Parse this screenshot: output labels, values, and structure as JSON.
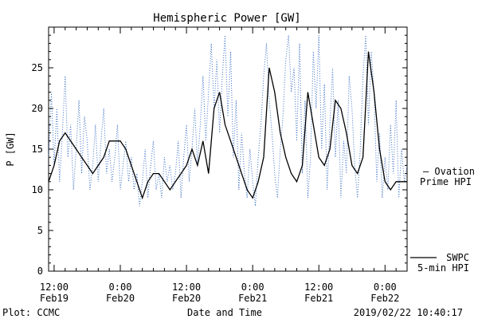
{
  "chart_data": {
    "type": "line",
    "title": "Hemispheric Power [GW]",
    "ylabel": "P [GW]",
    "xlabel": "Date and Time",
    "ylim": [
      0,
      30
    ],
    "xlim": [
      -1.0,
      64.0
    ],
    "y_ticks": [
      0,
      5,
      10,
      15,
      20,
      25
    ],
    "x_ticks": [
      {
        "x": 0,
        "time": "12:00",
        "date": "Feb19"
      },
      {
        "x": 12,
        "time": "0:00",
        "date": "Feb20"
      },
      {
        "x": 24,
        "time": "12:00",
        "date": "Feb20"
      },
      {
        "x": 36,
        "time": "0:00",
        "date": "Feb21"
      },
      {
        "x": 48,
        "time": "12:00",
        "date": "Feb21"
      },
      {
        "x": 60,
        "time": "0:00",
        "date": "Feb22"
      }
    ],
    "grid": false,
    "legend_position": "right",
    "series": [
      {
        "name": "SWPC 5-min HPI",
        "legend_lines": [
          "SWPC",
          "5-min HPI"
        ],
        "color": "#000000",
        "style": "solid",
        "x": [
          -1,
          0,
          1,
          2,
          3,
          4,
          5,
          6,
          7,
          8,
          9,
          10,
          11,
          12,
          13,
          14,
          15,
          16,
          17,
          18,
          19,
          20,
          21,
          22,
          23,
          24,
          25,
          26,
          27,
          28,
          29,
          30,
          31,
          32,
          33,
          34,
          35,
          36,
          37,
          38,
          39,
          40,
          41,
          42,
          43,
          44,
          45,
          46,
          47,
          48,
          49,
          50,
          51,
          52,
          53,
          54,
          55,
          56,
          57,
          58,
          59,
          60,
          61,
          62,
          63,
          64
        ],
        "y": [
          11,
          13,
          16,
          17,
          16,
          15,
          14,
          13,
          12,
          13,
          14,
          16,
          16,
          16,
          15,
          13,
          11,
          9,
          11,
          12,
          12,
          11,
          10,
          11,
          12,
          13,
          15,
          13,
          16,
          12,
          20,
          22,
          18,
          16,
          14,
          12,
          10,
          9,
          11,
          14,
          25,
          22,
          17,
          14,
          12,
          11,
          13,
          22,
          18,
          14,
          13,
          15,
          21,
          20,
          17,
          13,
          12,
          14,
          27,
          22,
          15,
          11,
          10,
          11,
          11,
          11
        ]
      },
      {
        "name": "Ovation Prime HPI",
        "legend_lines": [
          "— Ovation",
          "Prime HPI"
        ],
        "color": "#3a6fc4",
        "style": "dotted",
        "x": [
          -1,
          -0.5,
          0,
          0.5,
          1,
          1.5,
          2,
          2.5,
          3,
          3.5,
          4,
          4.5,
          5,
          5.5,
          6,
          6.5,
          7,
          7.5,
          8,
          8.5,
          9,
          9.5,
          10,
          10.5,
          11,
          11.5,
          12,
          12.5,
          13,
          13.5,
          14,
          14.5,
          15,
          15.5,
          16,
          16.5,
          17,
          17.5,
          18,
          18.5,
          19,
          19.5,
          20,
          20.5,
          21,
          21.5,
          22,
          22.5,
          23,
          23.5,
          24,
          24.5,
          25,
          25.5,
          26,
          26.5,
          27,
          27.5,
          28,
          28.5,
          29,
          29.5,
          30,
          30.5,
          31,
          31.5,
          32,
          32.5,
          33,
          33.5,
          34,
          34.5,
          35,
          35.5,
          36,
          36.5,
          37,
          37.5,
          38,
          38.5,
          39,
          39.5,
          40,
          40.5,
          41,
          41.5,
          42,
          42.5,
          43,
          43.5,
          44,
          44.5,
          45,
          45.5,
          46,
          46.5,
          47,
          47.5,
          48,
          48.5,
          49,
          49.5,
          50,
          50.5,
          51,
          51.5,
          52,
          52.5,
          53,
          53.5,
          54,
          54.5,
          55,
          55.5,
          56,
          56.5,
          57,
          57.5,
          58,
          58.5,
          59,
          59.5,
          60,
          60.5,
          61,
          61.5,
          62,
          62.5,
          63,
          63.5,
          64
        ],
        "y": [
          14,
          22,
          13,
          20,
          11,
          17,
          24,
          14,
          18,
          10,
          15,
          21,
          12,
          19,
          16,
          10,
          13,
          18,
          11,
          16,
          20,
          12,
          15,
          11,
          14,
          18,
          10,
          13,
          16,
          11,
          14,
          10,
          12,
          8,
          11,
          15,
          9,
          13,
          16,
          10,
          12,
          9,
          14,
          11,
          13,
          10,
          12,
          16,
          9,
          14,
          18,
          11,
          15,
          20,
          13,
          18,
          24,
          16,
          22,
          28,
          20,
          26,
          17,
          24,
          29,
          19,
          27,
          14,
          21,
          10,
          17,
          12,
          9,
          15,
          11,
          8,
          14,
          18,
          24,
          28,
          21,
          17,
          12,
          9,
          15,
          19,
          26,
          29,
          22,
          25,
          16,
          28,
          12,
          21,
          9,
          14,
          27,
          20,
          29,
          15,
          23,
          10,
          18,
          25,
          14,
          21,
          9,
          16,
          12,
          24,
          20,
          13,
          9,
          15,
          24,
          29,
          18,
          27,
          22,
          11,
          17,
          9,
          14,
          10,
          18,
          12,
          21,
          9,
          15,
          11,
          13
        ]
      }
    ],
    "annotations": {
      "left": "Plot: CCMC",
      "right": "2019/02/22 10:40:17"
    }
  }
}
